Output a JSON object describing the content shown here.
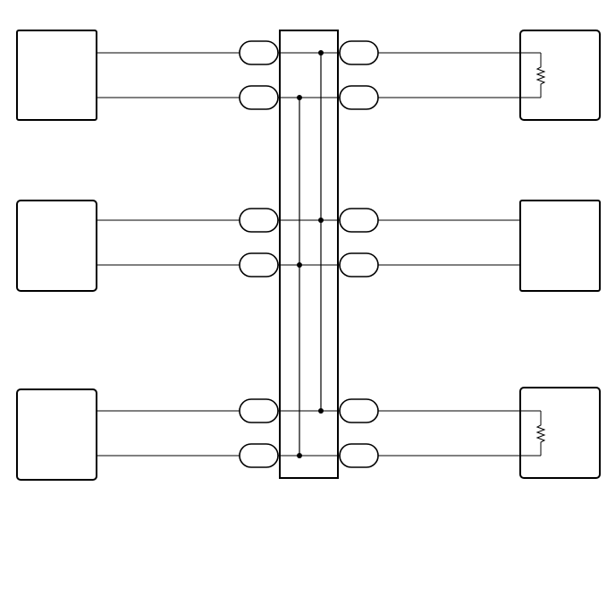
{
  "diagram": {
    "type": "wiring-diagram",
    "left_devices": 3,
    "right_devices": 3,
    "hub": "central-junction-block",
    "terminated_right_devices": [
      1,
      3
    ],
    "colors": {
      "line": "#000000",
      "background": "#ffffff"
    }
  }
}
